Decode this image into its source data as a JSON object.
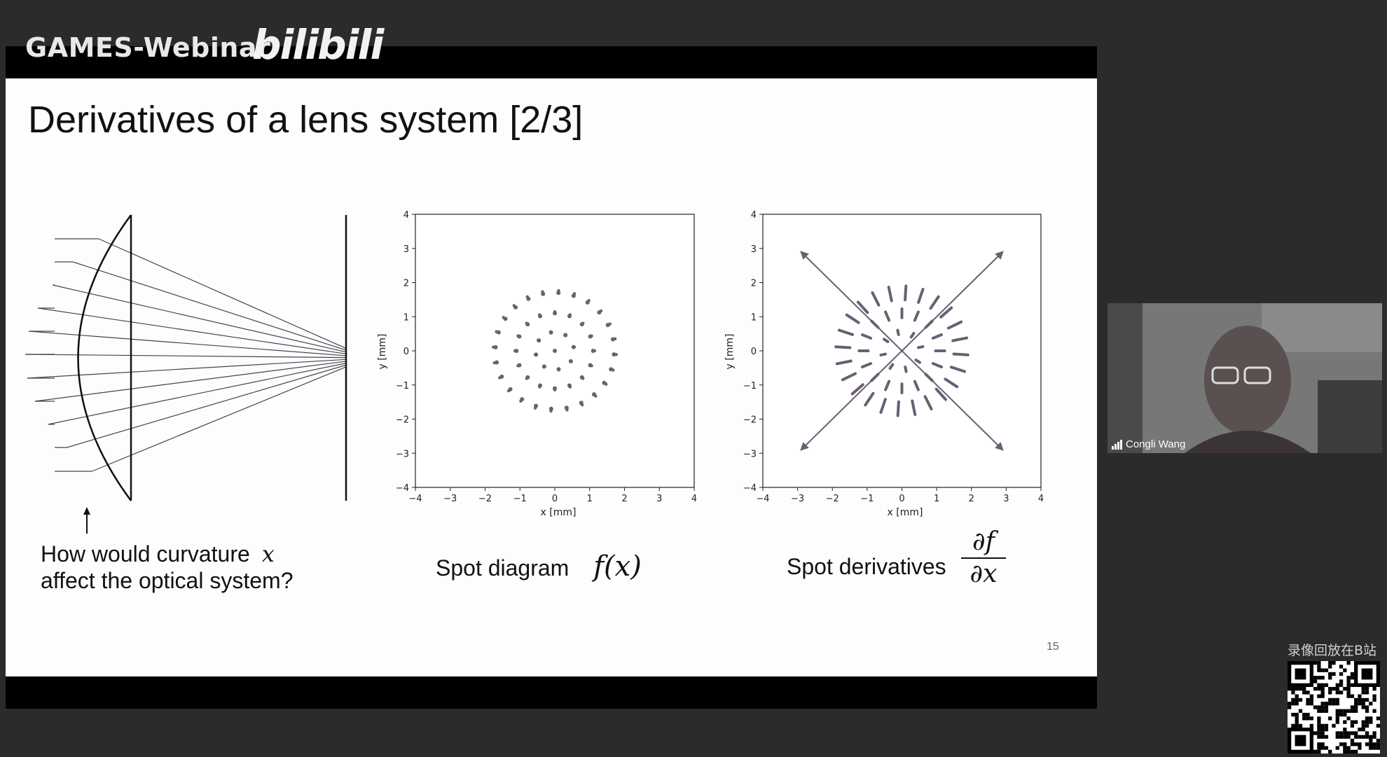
{
  "header": {
    "brand": "GAMES-Webinar",
    "platform_logo": "bilibili"
  },
  "slide": {
    "title": "Derivatives of a lens system [2/3]",
    "page_number": "15",
    "captions": {
      "lens_line1": "How would curvature",
      "lens_var": "x",
      "lens_line2": "affect the optical system?",
      "spot_label": "Spot diagram",
      "spot_math": "f(x)",
      "deriv_label": "Spot derivatives",
      "deriv_num": "∂f",
      "deriv_den": "∂x"
    },
    "plot_spot": {
      "xlabel": "x [mm]",
      "ylabel": "y [mm]"
    },
    "plot_deriv": {
      "xlabel": "x [mm]",
      "ylabel": "y [mm]"
    }
  },
  "chart_data": [
    {
      "type": "scatter",
      "title": "",
      "xlabel": "x [mm]",
      "ylabel": "y [mm]",
      "xlim": [
        -4,
        4
      ],
      "ylim": [
        -4,
        4
      ],
      "xticks": [
        -4,
        -3,
        -2,
        -1,
        0,
        1,
        2,
        3,
        4
      ],
      "yticks": [
        4,
        3,
        2,
        1,
        0,
        -1,
        -2,
        -3,
        -4
      ],
      "rings": [
        0,
        0.55,
        1.1,
        1.7
      ],
      "ring_counts": [
        1,
        8,
        16,
        24
      ]
    },
    {
      "type": "scatter",
      "title": "",
      "xlabel": "x [mm]",
      "ylabel": "y [mm]",
      "xlim": [
        -4,
        4
      ],
      "ylim": [
        -4,
        4
      ],
      "xticks": [
        -4,
        -3,
        -2,
        -1,
        0,
        1,
        2,
        3,
        4
      ],
      "yticks": [
        4,
        3,
        2,
        1,
        0,
        -1,
        -2,
        -3,
        -4
      ],
      "rings": [
        0,
        0.55,
        1.1,
        1.7
      ],
      "ring_counts": [
        1,
        8,
        16,
        24
      ],
      "long_arrows": [
        [
          2.9,
          2.9
        ],
        [
          -2.9,
          2.9
        ],
        [
          2.9,
          -2.9
        ],
        [
          -2.9,
          -2.9
        ]
      ]
    }
  ],
  "webcam": {
    "participant_name": "Congli Wang"
  },
  "footer": {
    "replay_text": "录像回放在B站"
  },
  "colors": {
    "plot_point": "#6b5f73",
    "slide_bg": "#fdfdfd",
    "bar_bg": "#000000"
  }
}
